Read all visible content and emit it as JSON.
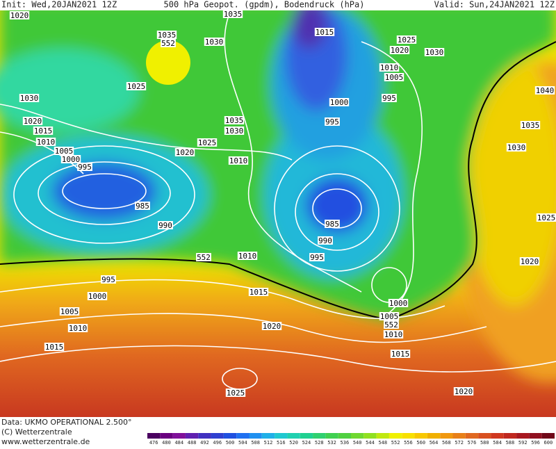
{
  "header": {
    "init": "Init: Wed,20JAN2021 12Z",
    "title": "500 hPa Geopot. (gpdm), Bodendruck (hPa)",
    "valid": "Valid: Sun,24JAN2021 12Z"
  },
  "map": {
    "labels": [
      1020,
      1035,
      1015,
      1035,
      552,
      1030,
      1025,
      1020,
      1030,
      1010,
      1005,
      1025,
      1030,
      1040,
      995,
      1000,
      1020,
      1035,
      995,
      1035,
      1015,
      1030,
      1010,
      1025,
      1030,
      1020,
      1005,
      1000,
      1010,
      995,
      985,
      1025,
      985,
      990,
      990,
      995,
      552,
      1010,
      1020,
      995,
      1015,
      1000,
      1000,
      1005,
      1005,
      552,
      1020,
      1010,
      1010,
      1015,
      1015,
      1025,
      1020
    ]
  },
  "colorbar": {
    "ticks": [
      476,
      480,
      484,
      488,
      492,
      496,
      500,
      504,
      508,
      512,
      516,
      520,
      524,
      528,
      532,
      536,
      540,
      544,
      548,
      552,
      556,
      560,
      564,
      568,
      572,
      576,
      580,
      584,
      588,
      592,
      596,
      600
    ],
    "colors": [
      "#4a0060",
      "#6a0080",
      "#80109a",
      "#6020b0",
      "#4030c0",
      "#3040d0",
      "#2050e0",
      "#2070f0",
      "#2090f0",
      "#20b0e8",
      "#20c8d0",
      "#20d0b0",
      "#20d090",
      "#30d070",
      "#40d050",
      "#50d040",
      "#70d830",
      "#90e020",
      "#c0e810",
      "#f0f000",
      "#f8e000",
      "#f8c800",
      "#f0b000",
      "#f09810",
      "#e88018",
      "#e06820",
      "#d85020",
      "#d03820",
      "#c02820",
      "#a81820",
      "#901020",
      "#700818"
    ]
  },
  "footer": {
    "data": "Data: UKMO OPERATIONAL 2.500°",
    "copyright": "(C) Wetterzentrale",
    "url": "www.wetterzentrale.de"
  }
}
